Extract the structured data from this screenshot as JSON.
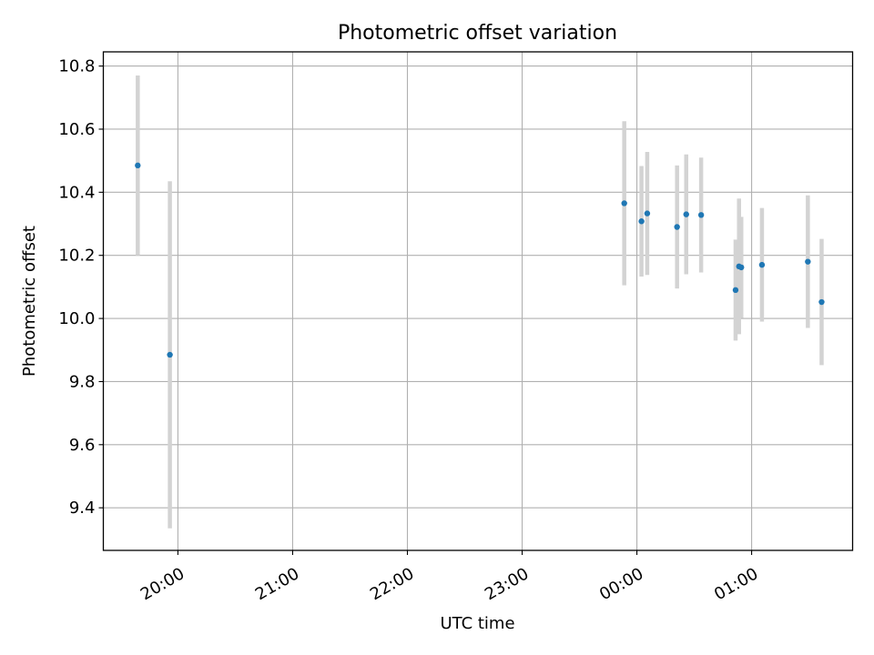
{
  "chart_data": {
    "type": "scatter",
    "title": "Photometric offset variation",
    "xlabel": "UTC time",
    "ylabel": "Photometric offset",
    "grid": true,
    "x_unit": "UTC time (hours past midnight; values above 24 fall on the following day)",
    "xlim": [
      19.35,
      25.88
    ],
    "ylim": [
      9.265,
      10.845
    ],
    "xticks": [
      {
        "value": 20,
        "label": "20:00"
      },
      {
        "value": 21,
        "label": "21:00"
      },
      {
        "value": 22,
        "label": "22:00"
      },
      {
        "value": 23,
        "label": "23:00"
      },
      {
        "value": 24,
        "label": "00:00"
      },
      {
        "value": 25,
        "label": "01:00"
      }
    ],
    "yticks": [
      {
        "value": 9.4,
        "label": "9.4"
      },
      {
        "value": 9.6,
        "label": "9.6"
      },
      {
        "value": 9.8,
        "label": "9.8"
      },
      {
        "value": 10.0,
        "label": "10.0"
      },
      {
        "value": 10.2,
        "label": "10.2"
      },
      {
        "value": 10.4,
        "label": "10.4"
      },
      {
        "value": 10.6,
        "label": "10.6"
      },
      {
        "value": 10.8,
        "label": "10.8"
      }
    ],
    "colors": {
      "marker": "#1f77b4",
      "errorbar": "#d3d3d3",
      "grid": "#b0b0b0"
    },
    "points": [
      {
        "x": 19.65,
        "y": 10.485,
        "err": 0.285
      },
      {
        "x": 19.93,
        "y": 9.885,
        "err": 0.55
      },
      {
        "x": 23.89,
        "y": 10.365,
        "err": 0.26
      },
      {
        "x": 24.04,
        "y": 10.308,
        "err": 0.175
      },
      {
        "x": 24.09,
        "y": 10.333,
        "err": 0.195
      },
      {
        "x": 24.35,
        "y": 10.29,
        "err": 0.195
      },
      {
        "x": 24.43,
        "y": 10.33,
        "err": 0.19
      },
      {
        "x": 24.56,
        "y": 10.328,
        "err": 0.182
      },
      {
        "x": 24.86,
        "y": 10.09,
        "err": 0.16
      },
      {
        "x": 24.89,
        "y": 10.165,
        "err": 0.215
      },
      {
        "x": 24.91,
        "y": 10.162,
        "err": 0.16
      },
      {
        "x": 25.09,
        "y": 10.17,
        "err": 0.18
      },
      {
        "x": 25.49,
        "y": 10.18,
        "err": 0.21
      },
      {
        "x": 25.61,
        "y": 10.052,
        "err": 0.2
      }
    ]
  }
}
